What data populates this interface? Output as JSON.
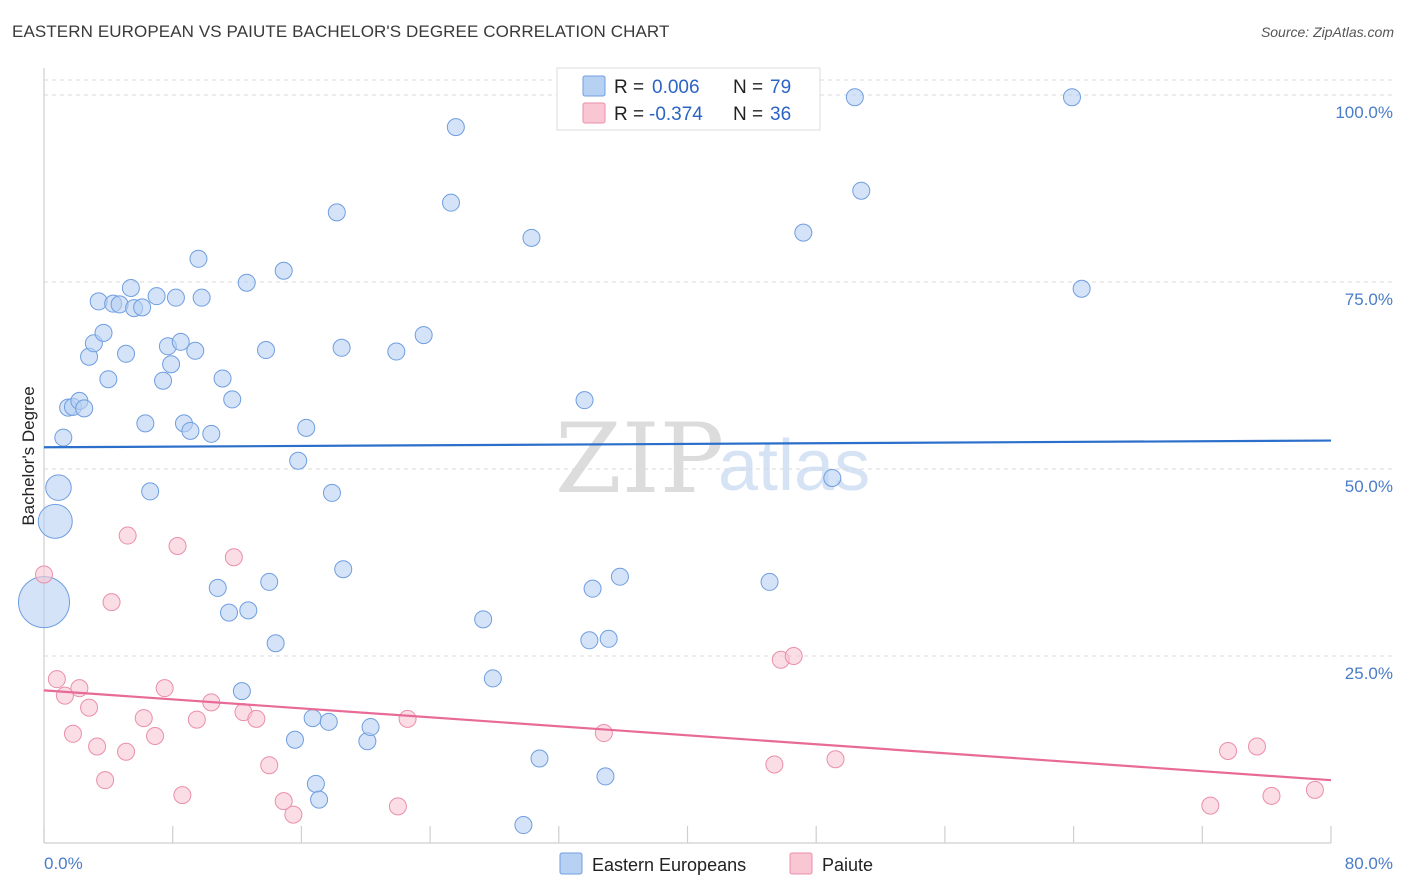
{
  "title": "EASTERN EUROPEAN VS PAIUTE BACHELOR'S DEGREE CORRELATION CHART",
  "source": "Source: ZipAtlas.com",
  "watermark": {
    "part1": "ZIP",
    "part2": "atlas"
  },
  "colors": {
    "blue_fill": "#b7d1f2",
    "blue_stroke": "#6f9ee0",
    "blue_line": "#2c6fca",
    "pink_fill": "#f9c6d4",
    "pink_stroke": "#ea8fab",
    "pink_line": "#e86a96",
    "tick_text": "#4a7cc7",
    "grid": "#d9d9d9"
  },
  "legend": {
    "r_label": "R =",
    "n_label": "N =",
    "series": [
      {
        "r": "0.006",
        "n": "79"
      },
      {
        "r": "-0.374",
        "n": "36"
      }
    ]
  },
  "chart_data": {
    "type": "scatter",
    "title": "EASTERN EUROPEAN VS PAIUTE BACHELOR'S DEGREE CORRELATION CHART",
    "xlabel": "",
    "ylabel": "Bachelor's Degree",
    "xlim": [
      0,
      80
    ],
    "ylim": [
      0,
      102
    ],
    "x_tick_labels": [
      "0.0%",
      "80.0%"
    ],
    "y_ticks": [
      25,
      50,
      75,
      100
    ],
    "y_tick_labels": [
      "25.0%",
      "50.0%",
      "75.0%",
      "100.0%"
    ],
    "grid": true,
    "series": [
      {
        "name": "Eastern Europeans",
        "color": "blue",
        "trend": {
          "x": [
            0,
            80
          ],
          "y": [
            52.9,
            53.8
          ]
        },
        "points": [
          {
            "x": 0.0,
            "y": 32.2,
            "s": 3
          },
          {
            "x": 0.7,
            "y": 43.0,
            "s": 2
          },
          {
            "x": 0.9,
            "y": 47.5,
            "s": 1.5
          },
          {
            "x": 1.2,
            "y": 54.2,
            "s": 1
          },
          {
            "x": 1.5,
            "y": 58.2,
            "s": 1
          },
          {
            "x": 1.8,
            "y": 58.3,
            "s": 1
          },
          {
            "x": 2.2,
            "y": 59.1,
            "s": 1
          },
          {
            "x": 2.5,
            "y": 58.1,
            "s": 1
          },
          {
            "x": 2.8,
            "y": 65.0,
            "s": 1
          },
          {
            "x": 3.1,
            "y": 66.8,
            "s": 1
          },
          {
            "x": 3.4,
            "y": 72.4,
            "s": 1
          },
          {
            "x": 3.7,
            "y": 68.2,
            "s": 1
          },
          {
            "x": 4.0,
            "y": 62.0,
            "s": 1
          },
          {
            "x": 4.3,
            "y": 72.1,
            "s": 1
          },
          {
            "x": 4.7,
            "y": 72.0,
            "s": 1
          },
          {
            "x": 5.1,
            "y": 65.4,
            "s": 1
          },
          {
            "x": 5.4,
            "y": 74.2,
            "s": 1
          },
          {
            "x": 5.6,
            "y": 71.5,
            "s": 1
          },
          {
            "x": 6.1,
            "y": 71.6,
            "s": 1
          },
          {
            "x": 6.3,
            "y": 56.1,
            "s": 1
          },
          {
            "x": 6.6,
            "y": 47.0,
            "s": 1
          },
          {
            "x": 7.0,
            "y": 73.1,
            "s": 1
          },
          {
            "x": 7.4,
            "y": 61.8,
            "s": 1
          },
          {
            "x": 7.7,
            "y": 66.4,
            "s": 1
          },
          {
            "x": 7.9,
            "y": 64.0,
            "s": 1
          },
          {
            "x": 8.2,
            "y": 72.9,
            "s": 1
          },
          {
            "x": 8.5,
            "y": 67.0,
            "s": 1
          },
          {
            "x": 8.7,
            "y": 56.1,
            "s": 1
          },
          {
            "x": 9.1,
            "y": 55.1,
            "s": 1
          },
          {
            "x": 9.4,
            "y": 65.8,
            "s": 1
          },
          {
            "x": 9.6,
            "y": 78.1,
            "s": 1
          },
          {
            "x": 9.8,
            "y": 72.9,
            "s": 1
          },
          {
            "x": 10.4,
            "y": 54.7,
            "s": 1
          },
          {
            "x": 10.8,
            "y": 34.1,
            "s": 1
          },
          {
            "x": 11.1,
            "y": 62.1,
            "s": 1
          },
          {
            "x": 11.5,
            "y": 30.8,
            "s": 1
          },
          {
            "x": 11.7,
            "y": 59.3,
            "s": 1
          },
          {
            "x": 12.3,
            "y": 20.3,
            "s": 1
          },
          {
            "x": 12.6,
            "y": 74.9,
            "s": 1
          },
          {
            "x": 12.7,
            "y": 31.1,
            "s": 1
          },
          {
            "x": 13.8,
            "y": 65.9,
            "s": 1
          },
          {
            "x": 14.0,
            "y": 34.9,
            "s": 1
          },
          {
            "x": 14.4,
            "y": 26.7,
            "s": 1
          },
          {
            "x": 14.9,
            "y": 76.5,
            "s": 1
          },
          {
            "x": 15.6,
            "y": 13.8,
            "s": 1
          },
          {
            "x": 15.8,
            "y": 51.1,
            "s": 1
          },
          {
            "x": 16.3,
            "y": 55.5,
            "s": 1
          },
          {
            "x": 16.7,
            "y": 16.7,
            "s": 1
          },
          {
            "x": 16.9,
            "y": 7.9,
            "s": 1
          },
          {
            "x": 17.1,
            "y": 5.8,
            "s": 1
          },
          {
            "x": 17.7,
            "y": 16.2,
            "s": 1
          },
          {
            "x": 17.9,
            "y": 46.8,
            "s": 1
          },
          {
            "x": 18.2,
            "y": 84.3,
            "s": 1
          },
          {
            "x": 18.5,
            "y": 66.2,
            "s": 1
          },
          {
            "x": 18.6,
            "y": 36.6,
            "s": 1
          },
          {
            "x": 20.1,
            "y": 13.6,
            "s": 1
          },
          {
            "x": 20.3,
            "y": 15.5,
            "s": 1
          },
          {
            "x": 21.9,
            "y": 65.7,
            "s": 1
          },
          {
            "x": 23.6,
            "y": 67.9,
            "s": 1
          },
          {
            "x": 25.3,
            "y": 85.6,
            "s": 1
          },
          {
            "x": 25.6,
            "y": 95.7,
            "s": 1
          },
          {
            "x": 27.3,
            "y": 29.9,
            "s": 1
          },
          {
            "x": 27.9,
            "y": 22.0,
            "s": 1
          },
          {
            "x": 29.8,
            "y": 2.4,
            "s": 1
          },
          {
            "x": 30.3,
            "y": 80.9,
            "s": 1
          },
          {
            "x": 30.8,
            "y": 11.3,
            "s": 1
          },
          {
            "x": 33.6,
            "y": 59.2,
            "s": 1
          },
          {
            "x": 33.9,
            "y": 27.1,
            "s": 1
          },
          {
            "x": 34.1,
            "y": 34.0,
            "s": 1
          },
          {
            "x": 34.9,
            "y": 8.9,
            "s": 1
          },
          {
            "x": 35.1,
            "y": 27.3,
            "s": 1
          },
          {
            "x": 35.8,
            "y": 35.6,
            "s": 1
          },
          {
            "x": 45.1,
            "y": 34.9,
            "s": 1
          },
          {
            "x": 47.2,
            "y": 81.6,
            "s": 1
          },
          {
            "x": 49.0,
            "y": 48.8,
            "s": 1
          },
          {
            "x": 50.4,
            "y": 99.7,
            "s": 1
          },
          {
            "x": 50.8,
            "y": 87.2,
            "s": 1
          },
          {
            "x": 63.9,
            "y": 99.7,
            "s": 1
          },
          {
            "x": 64.5,
            "y": 74.1,
            "s": 1
          }
        ]
      },
      {
        "name": "Paiute",
        "color": "pink",
        "trend": {
          "x": [
            0,
            80
          ],
          "y": [
            20.4,
            8.4
          ]
        },
        "points": [
          {
            "x": 0.0,
            "y": 35.9,
            "s": 1
          },
          {
            "x": 0.8,
            "y": 21.9,
            "s": 1
          },
          {
            "x": 1.3,
            "y": 19.7,
            "s": 1
          },
          {
            "x": 1.8,
            "y": 14.6,
            "s": 1
          },
          {
            "x": 2.2,
            "y": 20.7,
            "s": 1
          },
          {
            "x": 2.8,
            "y": 18.1,
            "s": 1
          },
          {
            "x": 3.3,
            "y": 12.9,
            "s": 1
          },
          {
            "x": 3.8,
            "y": 8.4,
            "s": 1
          },
          {
            "x": 4.2,
            "y": 32.2,
            "s": 1
          },
          {
            "x": 5.1,
            "y": 12.2,
            "s": 1
          },
          {
            "x": 5.2,
            "y": 41.1,
            "s": 1
          },
          {
            "x": 6.2,
            "y": 16.7,
            "s": 1
          },
          {
            "x": 6.9,
            "y": 14.3,
            "s": 1
          },
          {
            "x": 7.5,
            "y": 20.7,
            "s": 1
          },
          {
            "x": 8.3,
            "y": 39.7,
            "s": 1
          },
          {
            "x": 8.6,
            "y": 6.4,
            "s": 1
          },
          {
            "x": 9.5,
            "y": 16.5,
            "s": 1
          },
          {
            "x": 10.4,
            "y": 18.8,
            "s": 1
          },
          {
            "x": 11.8,
            "y": 38.2,
            "s": 1
          },
          {
            "x": 12.4,
            "y": 17.5,
            "s": 1
          },
          {
            "x": 13.2,
            "y": 16.6,
            "s": 1
          },
          {
            "x": 14.0,
            "y": 10.4,
            "s": 1
          },
          {
            "x": 14.9,
            "y": 5.6,
            "s": 1
          },
          {
            "x": 15.5,
            "y": 3.8,
            "s": 1
          },
          {
            "x": 22.0,
            "y": 4.9,
            "s": 1
          },
          {
            "x": 22.6,
            "y": 16.6,
            "s": 1
          },
          {
            "x": 34.8,
            "y": 14.7,
            "s": 1
          },
          {
            "x": 45.4,
            "y": 10.5,
            "s": 1
          },
          {
            "x": 45.8,
            "y": 24.5,
            "s": 1
          },
          {
            "x": 46.6,
            "y": 25.0,
            "s": 1
          },
          {
            "x": 49.2,
            "y": 11.2,
            "s": 1
          },
          {
            "x": 72.5,
            "y": 5.0,
            "s": 1
          },
          {
            "x": 73.6,
            "y": 12.3,
            "s": 1
          },
          {
            "x": 75.4,
            "y": 12.9,
            "s": 1
          },
          {
            "x": 76.3,
            "y": 6.3,
            "s": 1
          },
          {
            "x": 79.0,
            "y": 7.1,
            "s": 1
          }
        ]
      }
    ]
  }
}
